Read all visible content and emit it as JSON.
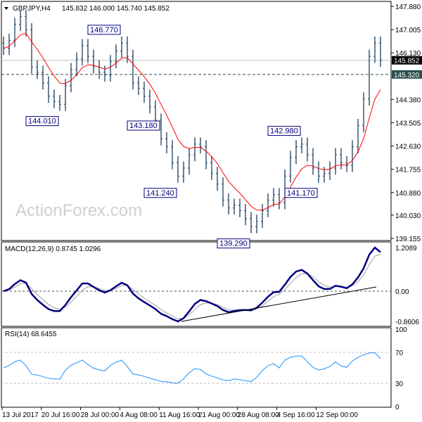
{
  "header": {
    "symbol": "GBPJPY,H4",
    "ohlc": "145.832 146.000 145.740 145.852"
  },
  "watermark": "ActionForex.com",
  "colors": {
    "bars": "#1c3f5e",
    "ma": "#ff0000",
    "macd": "#000080",
    "signal": "#a0a0a0",
    "rsi": "#1e90ff",
    "label_box": "#000080"
  },
  "chart_data": [
    {
      "type": "ohlc",
      "title": "GBPJPY,H4",
      "y_ticks": [
        "147.880",
        "147.005",
        "146.130",
        "144.380",
        "143.505",
        "142.630",
        "141.755",
        "140.880",
        "140.030",
        "139.155"
      ],
      "ylim": [
        139.155,
        147.88
      ],
      "x_ticks": [
        "13 Jul 2017",
        "20 Jul 16:00",
        "28 Jul 00:00",
        "4 Aug 08:00",
        "11 Aug 16:00",
        "21 Aug 00:00",
        "28 Aug 08:00",
        "4 Sep 16:00",
        "12 Sep 00:00"
      ],
      "closes": [
        146.3,
        146.6,
        147.2,
        147.5,
        147.0,
        145.6,
        145.4,
        145.0,
        144.5,
        144.3,
        144.2,
        144.9,
        145.5,
        145.9,
        146.4,
        146.0,
        145.6,
        145.4,
        145.3,
        145.8,
        146.2,
        146.5,
        146.0,
        145.0,
        144.8,
        144.5,
        144.1,
        143.6,
        142.9,
        142.6,
        142.0,
        141.5,
        141.8,
        142.3,
        142.7,
        142.6,
        142.0,
        141.6,
        141.2,
        140.6,
        140.3,
        140.4,
        140.2,
        139.9,
        139.6,
        139.8,
        140.2,
        140.6,
        140.8,
        140.5,
        141.5,
        142.2,
        142.6,
        142.7,
        142.3,
        141.8,
        141.5,
        141.6,
        141.8,
        142.3,
        142.0,
        141.9,
        142.6,
        143.4,
        144.4,
        146.0,
        146.5,
        145.852
      ],
      "current_price": "145.852",
      "level_line": "145.320",
      "annotations": [
        {
          "label": "146.770",
          "bar": 21
        },
        {
          "label": "144.010",
          "bar": 10
        },
        {
          "label": "143.180",
          "bar": 28
        },
        {
          "label": "141.240",
          "bar": 31
        },
        {
          "label": "139.290",
          "bar": 44
        },
        {
          "label": "142.980",
          "bar": 53
        },
        {
          "label": "141.170",
          "bar": 56
        }
      ]
    },
    {
      "type": "line",
      "title": "MACD(12,26,9) 0.8745 1.0296",
      "y_ticks": [
        "1.2089",
        "0.00",
        "-0.8606"
      ],
      "ylim": [
        -0.8606,
        1.2089
      ]
    },
    {
      "type": "line",
      "title": "RSI(14) 68.6455",
      "y_ticks": [
        "100",
        "70",
        "30",
        "0"
      ],
      "ylim": [
        0,
        100
      ]
    }
  ]
}
